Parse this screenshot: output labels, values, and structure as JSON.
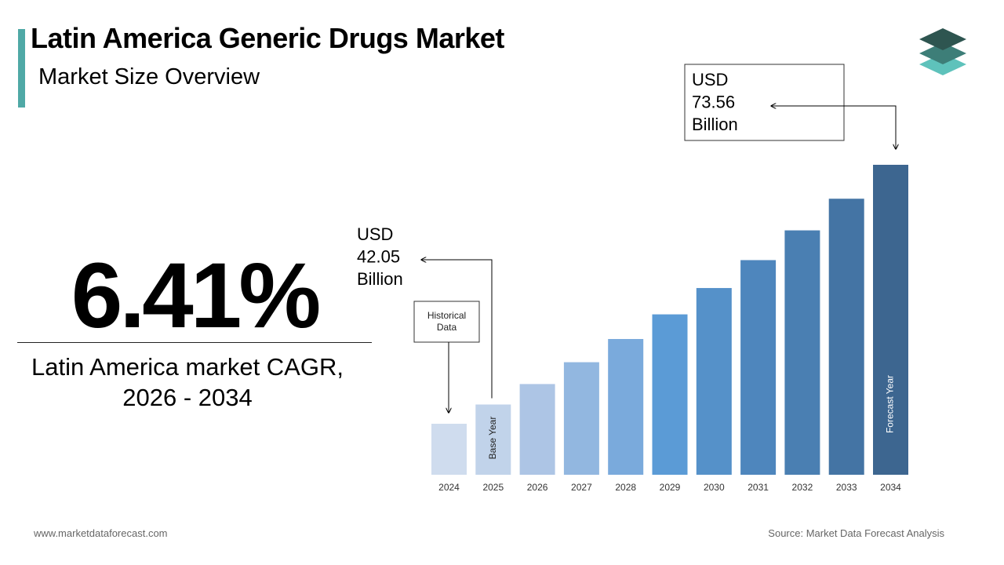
{
  "header": {
    "title": "Latin America Generic Drugs Market",
    "subtitle": "Market Size Overview"
  },
  "cagr": {
    "value": "6.41%",
    "label_line1": "Latin America market CAGR,",
    "label_line2": "2026 - 2034"
  },
  "chart_data": {
    "type": "bar",
    "categories": [
      "2024",
      "2025",
      "2026",
      "2027",
      "2028",
      "2029",
      "2030",
      "2031",
      "2032",
      "2033",
      "2034"
    ],
    "values": [
      39.52,
      42.05,
      44.74,
      47.61,
      50.66,
      53.9,
      57.36,
      61.03,
      64.94,
      69.1,
      73.56
    ],
    "colors": [
      "#cfdcee",
      "#c1d3ea",
      "#adc5e5",
      "#92b7e0",
      "#7aaadc",
      "#5b9bd6",
      "#5591c9",
      "#4e86bd",
      "#4a7fb2",
      "#4474a4",
      "#3d6690"
    ],
    "bar_labels": {
      "1": "Base Year",
      "10": "Forecast Year"
    },
    "callout_historical": [
      "Historical",
      "Data"
    ],
    "callout_2025": [
      "USD",
      "42.05",
      "Billion"
    ],
    "callout_2034": [
      "USD",
      "73.56",
      "Billion"
    ]
  },
  "icons": {
    "logo": "stacked-layers-icon",
    "logo_colors": [
      "#2e5550",
      "#3d7e78",
      "#5ec2bb"
    ]
  },
  "footer": {
    "website": "www.marketdataforecast.com",
    "source": "Source: Market Data Forecast Analysis"
  }
}
